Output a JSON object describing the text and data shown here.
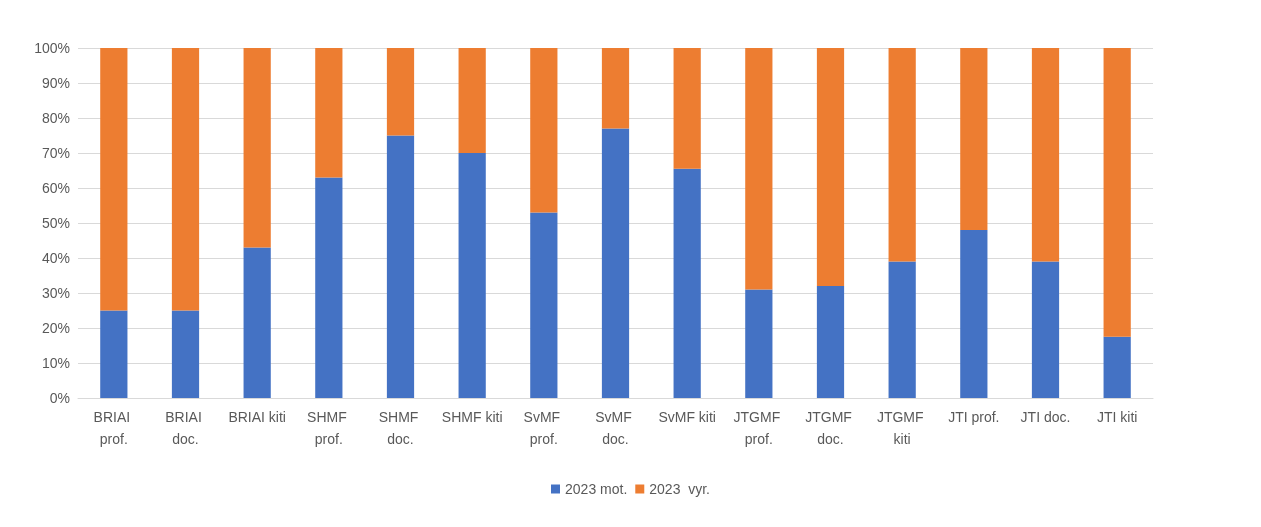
{
  "chart_data": {
    "type": "bar",
    "stacked": true,
    "categories": [
      "BRIAI prof.",
      "BRIAI doc.",
      "BRIAI kiti",
      "SHMF prof.",
      "SHMF doc.",
      "SHMF kiti",
      "SvMF prof.",
      "SvMF doc.",
      "SvMF kiti",
      "JTGMF prof.",
      "JTGMF doc.",
      "JTGMF kiti",
      "JTI prof.",
      "JTI doc.",
      "JTI kiti"
    ],
    "series": [
      {
        "name": "2023 mot.",
        "color": "#4472c4",
        "values": [
          25,
          25,
          43,
          63,
          75,
          70,
          53,
          77,
          65.5,
          31,
          32,
          39,
          48,
          39,
          17.5
        ]
      },
      {
        "name": "2023  vyr.",
        "color": "#ed7d31",
        "values": [
          75,
          75,
          57,
          37,
          25,
          30,
          47,
          23,
          34.5,
          69,
          68,
          61,
          52,
          61,
          82.5
        ]
      }
    ],
    "ylim": [
      0,
      100
    ],
    "yticks": [
      {
        "value": 0,
        "label": "0%"
      },
      {
        "value": 10,
        "label": "10%"
      },
      {
        "value": 20,
        "label": "20%"
      },
      {
        "value": 30,
        "label": "30%"
      },
      {
        "value": 40,
        "label": "40%"
      },
      {
        "value": 50,
        "label": "50%"
      },
      {
        "value": 60,
        "label": "60%"
      },
      {
        "value": 70,
        "label": "70%"
      },
      {
        "value": 80,
        "label": "80%"
      },
      {
        "value": 90,
        "label": "90%"
      },
      {
        "value": 100,
        "label": "100%"
      }
    ],
    "grid": "y",
    "legend": "bottom"
  }
}
